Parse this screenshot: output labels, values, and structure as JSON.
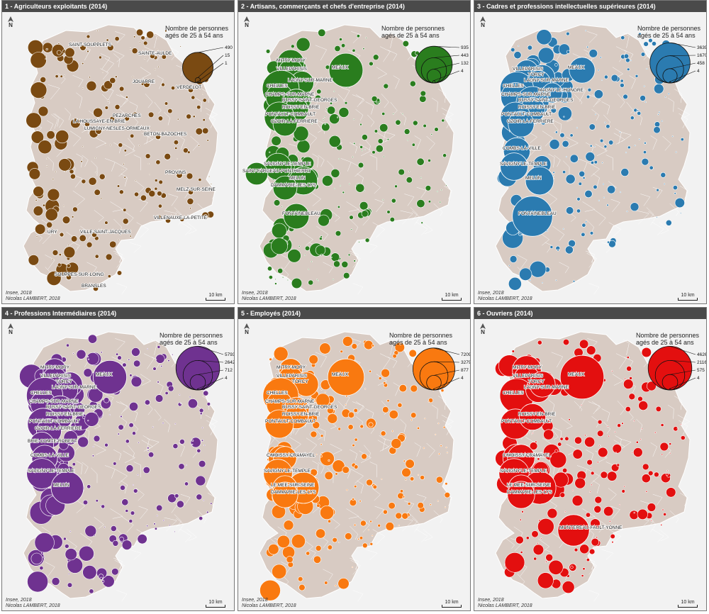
{
  "legend_title_line1": "Nombre de personnes",
  "legend_title_line2": "agés de 25 à 54 ans",
  "source_line1": "Insee, 2018",
  "source_line2": "Nicolas LAMBERT, 2018",
  "scale_label": "10 km",
  "north_label": "N",
  "panels": [
    {
      "title": "1 - Agriculteurs exploitants (2014)",
      "color": "#7a4a12",
      "legend_values": [
        "490",
        "15",
        "1"
      ],
      "symbol_scale": 0.35,
      "towns": [
        {
          "name": "SAINT-SOUPPLETS",
          "v": 20
        },
        {
          "name": "SAINTE-AULDE",
          "v": 15
        },
        {
          "name": "JOUARRE",
          "v": 20
        },
        {
          "name": "VERDELOT",
          "v": 15
        },
        {
          "name": "PEZARCHES",
          "v": 15
        },
        {
          "name": "LA HOUSSAYE-EN-BRIE",
          "v": 15
        },
        {
          "name": "LUMIGNY-NESLES-ORMEAUX",
          "v": 20
        },
        {
          "name": "BETON-BAZOCHES",
          "v": 15
        },
        {
          "name": "PROVINS",
          "v": 20
        },
        {
          "name": "MELZ-SUR-SEINE",
          "v": 15
        },
        {
          "name": "VILLENAUXE-LA-PETITE",
          "v": 15
        },
        {
          "name": "URY",
          "v": 10
        },
        {
          "name": "VILLE-SAINT-JACQUES",
          "v": 15
        },
        {
          "name": "SOUPPES-SUR-LOING",
          "v": 15
        },
        {
          "name": "BRANSLES",
          "v": 15
        }
      ]
    },
    {
      "title": "2 - Artisans, commerçants et chefs d'entreprise (2014)",
      "color": "#2a7d1e",
      "legend_values": [
        "935",
        "443",
        "132",
        "4"
      ],
      "symbol_scale": 0.42,
      "towns": [
        {
          "name": "MITRY-MORY",
          "v": 500
        },
        {
          "name": "MEAUX",
          "v": 800
        },
        {
          "name": "VILLEPARISIS",
          "v": 420
        },
        {
          "name": "LAGNY-SUR-MARNE",
          "v": 380
        },
        {
          "name": "CHELLES",
          "v": 935
        },
        {
          "name": "CHAMPS-SUR-MARNE",
          "v": 500
        },
        {
          "name": "BUSSY-SAINT-GEORGES",
          "v": 520
        },
        {
          "name": "ROISSY-EN-BRIE",
          "v": 400
        },
        {
          "name": "PONTAULT-COMBAULT",
          "v": 620
        },
        {
          "name": "OZOIR-LA-FERRIERE",
          "v": 400
        },
        {
          "name": "SAVIGNY-LE-TEMPLE",
          "v": 500
        },
        {
          "name": "SAINT-FARGEAU-PONTHIERRY",
          "v": 350
        },
        {
          "name": "MELUN",
          "v": 550
        },
        {
          "name": "DAMMARIE-LES-LYS",
          "v": 400
        },
        {
          "name": "FONTAINEBLEAU",
          "v": 450
        }
      ]
    },
    {
      "title": "3 - Cadres et professions intellectuelles supérieures (2014)",
      "color": "#2b7bb0",
      "legend_values": [
        "3639",
        "1670",
        "458",
        "4"
      ],
      "symbol_scale": 0.46,
      "towns": [
        {
          "name": "MEAUX",
          "v": 1500
        },
        {
          "name": "VILLEPARISIS",
          "v": 1200
        },
        {
          "name": "TORCY",
          "v": 1400
        },
        {
          "name": "LAGNY-SUR-MARNE",
          "v": 1400
        },
        {
          "name": "CHELLES",
          "v": 2500
        },
        {
          "name": "MAGNY-LE-HONGRE",
          "v": 900
        },
        {
          "name": "CHAMPS-SUR-MARNE",
          "v": 1900
        },
        {
          "name": "BUSSY-SAINT-GEORGES",
          "v": 2400
        },
        {
          "name": "ROISSY-EN-BRIE",
          "v": 1400
        },
        {
          "name": "PONTAULT-COMBAULT",
          "v": 2000
        },
        {
          "name": "OZOIR-LA-FERRIERE",
          "v": 1500
        },
        {
          "name": "COMBS-LA-VILLE",
          "v": 1600
        },
        {
          "name": "SAVIGNY-LE-TEMPLE",
          "v": 1700
        },
        {
          "name": "MELUN",
          "v": 1800
        },
        {
          "name": "FONTAINEBLEAU",
          "v": 3639
        }
      ]
    },
    {
      "title": "4 - Professions Intermédiaires (2014)",
      "color": "#6f3290",
      "legend_values": [
        "5793",
        "2642",
        "712",
        "4"
      ],
      "symbol_scale": 0.5,
      "towns": [
        {
          "name": "MITRY-MORY",
          "v": 1600
        },
        {
          "name": "MEAUX",
          "v": 3400
        },
        {
          "name": "VILLEPARISIS",
          "v": 1700
        },
        {
          "name": "TORCY",
          "v": 1800
        },
        {
          "name": "LAGNY-SUR-MARNE",
          "v": 1700
        },
        {
          "name": "CHELLES",
          "v": 4000
        },
        {
          "name": "CHAMPS-SUR-MARNE",
          "v": 2000
        },
        {
          "name": "BUSSY-SAINT-GEORGES",
          "v": 2400
        },
        {
          "name": "ROISSY-EN-BRIE",
          "v": 1800
        },
        {
          "name": "PONTAULT-COMBAULT",
          "v": 3000
        },
        {
          "name": "OZOIR-LA-FERRIERE",
          "v": 1900
        },
        {
          "name": "BRIE-COMTE-ROBERT",
          "v": 1700
        },
        {
          "name": "COMBS-LA-VILLE",
          "v": 2000
        },
        {
          "name": "SAVIGNY-LE-TEMPLE",
          "v": 2800
        },
        {
          "name": "MELUN",
          "v": 3200
        }
      ]
    },
    {
      "title": "5 - Employés (2014)",
      "color": "#f97910",
      "legend_values": [
        "7209",
        "3279",
        "877",
        "4"
      ],
      "symbol_scale": 0.48,
      "towns": [
        {
          "name": "MITRY-MORY",
          "v": 2200
        },
        {
          "name": "MEAUX",
          "v": 5500
        },
        {
          "name": "VILLEPARISIS",
          "v": 2400
        },
        {
          "name": "TORCY",
          "v": 2400
        },
        {
          "name": "CHELLES",
          "v": 5200
        },
        {
          "name": "CHAMPS-SUR-MARNE",
          "v": 2700
        },
        {
          "name": "BUSSY-SAINT-GEORGES",
          "v": 2600
        },
        {
          "name": "ROISSY-EN-BRIE",
          "v": 2300
        },
        {
          "name": "PONTAULT-COMBAULT",
          "v": 3300
        },
        {
          "name": "COMBS-LA-VILLE",
          "v": 2500
        },
        {
          "name": "MOISSY-CRAMAYEL",
          "v": 2200
        },
        {
          "name": "SAVIGNY-LE-TEMPLE",
          "v": 3400
        },
        {
          "name": "MELUN",
          "v": 4000
        },
        {
          "name": "LE MEE-SUR-SEINE",
          "v": 2400
        },
        {
          "name": "DAMMARIE-LES-LYS",
          "v": 2700
        }
      ]
    },
    {
      "title": "6 - Ouvriers (2014)",
      "color": "#e30f0f",
      "legend_values": [
        "4626",
        "2116",
        "575",
        "4"
      ],
      "symbol_scale": 0.5,
      "towns": [
        {
          "name": "MITRY-MORY",
          "v": 2000
        },
        {
          "name": "MEAUX",
          "v": 4626
        },
        {
          "name": "VILLEPARISIS",
          "v": 1600
        },
        {
          "name": "CHELLES",
          "v": 2800
        },
        {
          "name": "LAGNY-SUR-MARNE",
          "v": 1500
        },
        {
          "name": "TORCY",
          "v": 1600
        },
        {
          "name": "PONTAULT-COMBAULT",
          "v": 2200
        },
        {
          "name": "ROISSY-EN-BRIE",
          "v": 1700
        },
        {
          "name": "COMBS-LA-VILLE",
          "v": 1900
        },
        {
          "name": "MOISSY-CRAMAYEL",
          "v": 1800
        },
        {
          "name": "SAVIGNY-LE-TEMPLE",
          "v": 2200
        },
        {
          "name": "MELUN",
          "v": 2600
        },
        {
          "name": "LE MEE-SUR-SEINE",
          "v": 1600
        },
        {
          "name": "DAMMARIE-LES-LYS",
          "v": 1800
        },
        {
          "name": "MONTEREAU-FAULT-YONNE",
          "v": 2400
        }
      ]
    }
  ]
}
